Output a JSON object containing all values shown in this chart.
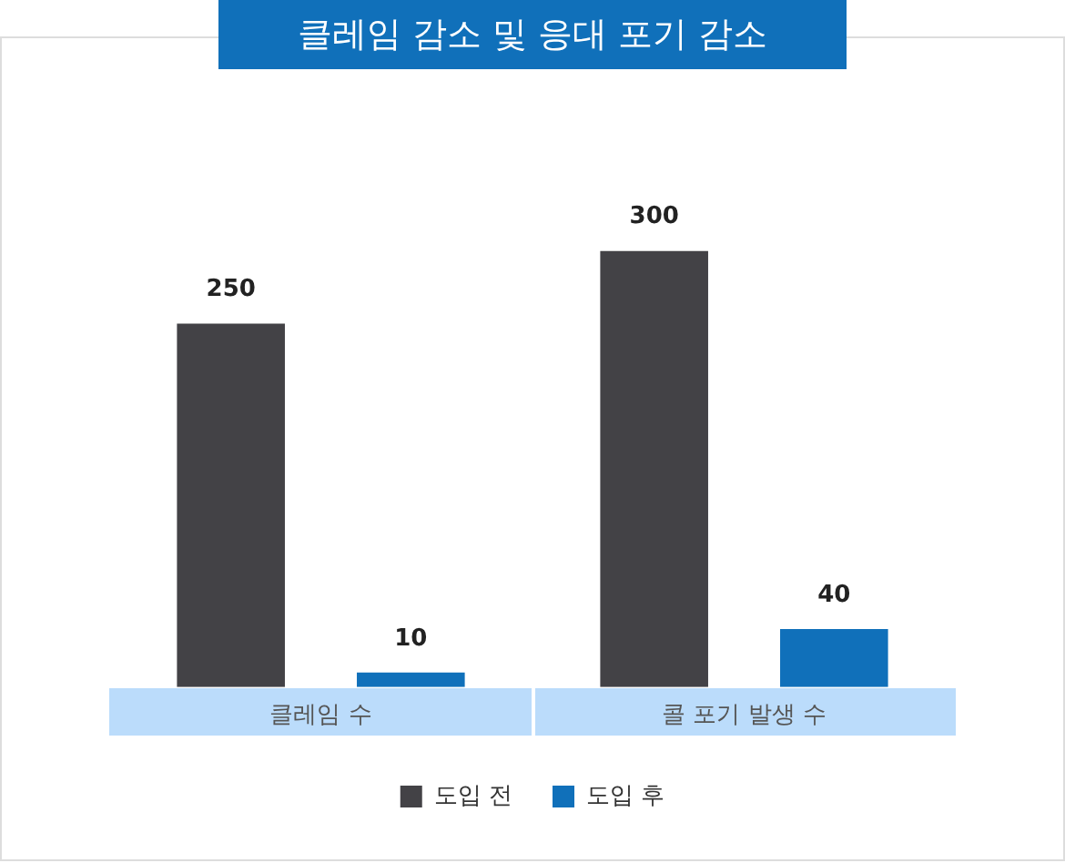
{
  "chart_data": {
    "type": "bar",
    "title": "클레임 감소 및 응대 포기 감소",
    "categories": [
      "클레임 수",
      "콜 포기 발생 수"
    ],
    "series": [
      {
        "name": "도입 전",
        "color": "#434246",
        "values": [
          250,
          300
        ]
      },
      {
        "name": "도입 후",
        "color": "#1070ba",
        "values": [
          10,
          40
        ]
      }
    ],
    "data_labels": true,
    "legend": "bottom",
    "grid": false
  }
}
